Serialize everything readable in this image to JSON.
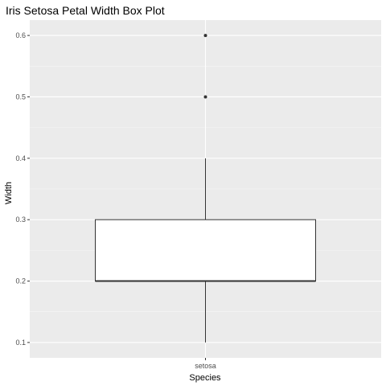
{
  "chart_data": {
    "type": "box",
    "title": "Iris Setosa Petal Width Box Plot",
    "xlabel": "Species",
    "ylabel": "Width",
    "categories": [
      "setosa"
    ],
    "ylim": [
      0.075,
      0.625
    ],
    "yticks": [
      0.1,
      0.2,
      0.3,
      0.4,
      0.5,
      0.6
    ],
    "ytick_labels": [
      "0.1",
      "0.2",
      "0.3",
      "0.4",
      "0.5",
      "0.6"
    ],
    "boxes": [
      {
        "category": "setosa",
        "whisker_low": 0.1,
        "q1": 0.2,
        "median": 0.2,
        "q3": 0.3,
        "whisker_high": 0.4,
        "outliers": [
          0.5,
          0.6
        ]
      }
    ],
    "grid": true,
    "legend": "none",
    "colors": {
      "panel_background": "#ebebeb",
      "grid_major": "#ffffff",
      "grid_minor": "#f5f5f5",
      "box_fill": "#ffffff",
      "box_stroke": "#333333",
      "outlier": "#333333"
    }
  }
}
